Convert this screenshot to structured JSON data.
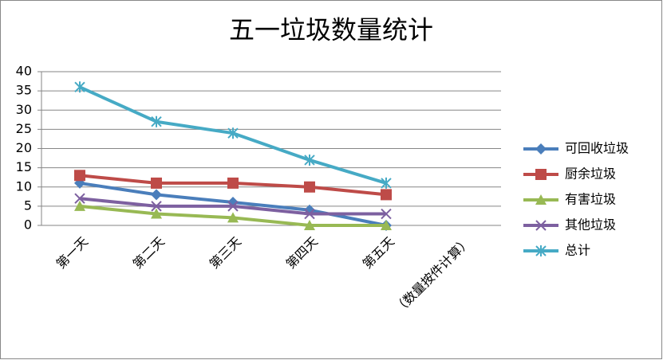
{
  "chart_data": {
    "type": "line",
    "title": "五一垃圾数量统计",
    "categories": [
      "第一天",
      "第二天",
      "第三天",
      "第四天",
      "第五天",
      "（数量按件计算）"
    ],
    "series": [
      {
        "name": "可回收垃圾",
        "color": "#4a7ebb",
        "marker": "diamond",
        "values": [
          11,
          8,
          6,
          4,
          0,
          null
        ]
      },
      {
        "name": "厨余垃圾",
        "color": "#be4b48",
        "marker": "square",
        "values": [
          13,
          11,
          11,
          10,
          8,
          null
        ]
      },
      {
        "name": "有害垃圾",
        "color": "#98b954",
        "marker": "triangle",
        "values": [
          5,
          3,
          2,
          0,
          0,
          null
        ]
      },
      {
        "name": "其他垃圾",
        "color": "#7d60a0",
        "marker": "x",
        "values": [
          7,
          5,
          5,
          3,
          3,
          null
        ]
      },
      {
        "name": "总计",
        "color": "#46aac5",
        "marker": "star",
        "values": [
          36,
          27,
          24,
          17,
          11,
          null
        ]
      }
    ],
    "ylim": [
      0,
      40
    ],
    "yticks": [
      0,
      5,
      10,
      15,
      20,
      25,
      30,
      35,
      40
    ],
    "grid": true,
    "legend": "right"
  }
}
